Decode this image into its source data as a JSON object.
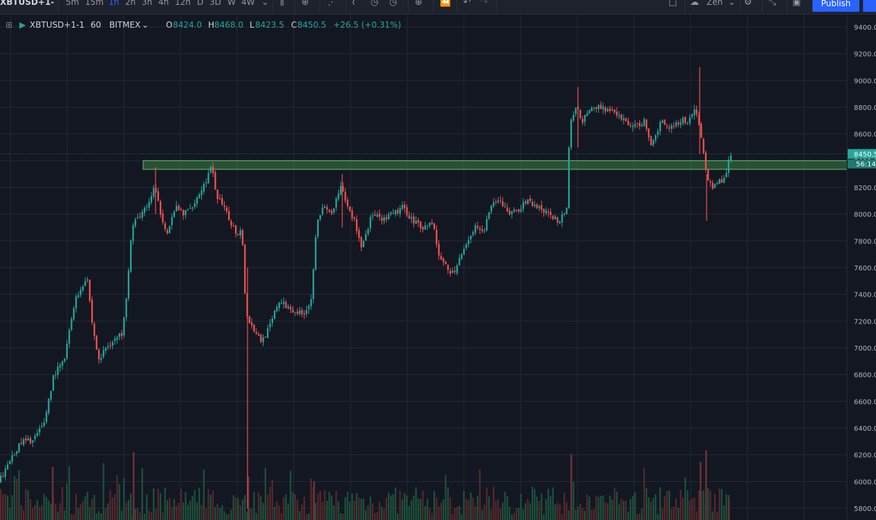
{
  "toolbar": {
    "symbol": "XBTUSD+1-",
    "timeframes": [
      "5m",
      "15m",
      "1h",
      "2h",
      "3h",
      "4h",
      "12h",
      "D",
      "3D",
      "W",
      "4W"
    ],
    "active_timeframe": "1h",
    "layout_name": "Zen",
    "publish_label": "Publish"
  },
  "legend": {
    "symbol": "XBTUSD+1-1",
    "interval": "60",
    "exchange": "BITMEX",
    "open_label": "O",
    "open": "8424.0",
    "high_label": "H",
    "high": "8468.0",
    "low_label": "L",
    "low": "8423.5",
    "close_label": "C",
    "close": "8450.5",
    "change": "+26.5 (+0.31%)"
  },
  "price_axis": {
    "current_price": "8450.5",
    "countdown": "56:14"
  },
  "colors": {
    "background": "#131722",
    "up": "#26a69a",
    "down": "#ef5350",
    "zone_fill": "#4caf50",
    "grid": "#242832"
  },
  "chart_data": {
    "type": "candlestick",
    "ylim": [
      5750,
      9500
    ],
    "yticks": [
      5800,
      6000,
      6200,
      6400,
      6600,
      6800,
      7000,
      7200,
      7400,
      7600,
      7800,
      8000,
      8200,
      8400,
      8600,
      8800,
      9000,
      9200,
      9400
    ],
    "ytick_labels": [
      "5800.0",
      "6000.0",
      "6200.0",
      "6400.0",
      "6600.0",
      "6800.0",
      "7000.0",
      "7200.0",
      "7400.0",
      "7600.0",
      "7800.0",
      "8000.0",
      "8200.0",
      "8400.0",
      "8600.0",
      "8800.0",
      "9000.0",
      "9200.0",
      "9400.0"
    ],
    "last_price": 8450.5,
    "horizontal_zone": {
      "low": 8335,
      "high": 8400
    },
    "price_path": [
      [
        0,
        6000
      ],
      [
        10,
        6080
      ],
      [
        20,
        6200
      ],
      [
        35,
        6300
      ],
      [
        50,
        6310
      ],
      [
        65,
        6420
      ],
      [
        80,
        6800
      ],
      [
        95,
        6900
      ],
      [
        110,
        7350
      ],
      [
        120,
        7450
      ],
      [
        128,
        7550
      ],
      [
        135,
        7200
      ],
      [
        145,
        6900
      ],
      [
        155,
        7000
      ],
      [
        165,
        7050
      ],
      [
        178,
        7100
      ],
      [
        185,
        7400
      ],
      [
        193,
        7900
      ],
      [
        205,
        8000
      ],
      [
        215,
        8050
      ],
      [
        225,
        8200
      ],
      [
        235,
        8000
      ],
      [
        245,
        7850
      ],
      [
        255,
        8050
      ],
      [
        268,
        8000
      ],
      [
        278,
        8050
      ],
      [
        290,
        8150
      ],
      [
        300,
        8250
      ],
      [
        308,
        8350
      ],
      [
        315,
        8150
      ],
      [
        325,
        8050
      ],
      [
        335,
        7950
      ],
      [
        345,
        7850
      ],
      [
        352,
        7900
      ],
      [
        358,
        7250
      ],
      [
        368,
        7150
      ],
      [
        380,
        7050
      ],
      [
        392,
        7150
      ],
      [
        405,
        7350
      ],
      [
        420,
        7300
      ],
      [
        440,
        7250
      ],
      [
        452,
        7350
      ],
      [
        460,
        7950
      ],
      [
        470,
        8050
      ],
      [
        482,
        8000
      ],
      [
        495,
        8200
      ],
      [
        505,
        8050
      ],
      [
        515,
        7950
      ],
      [
        525,
        7750
      ],
      [
        540,
        8000
      ],
      [
        555,
        7950
      ],
      [
        570,
        8000
      ],
      [
        585,
        8050
      ],
      [
        600,
        7950
      ],
      [
        615,
        7900
      ],
      [
        628,
        7950
      ],
      [
        636,
        7700
      ],
      [
        648,
        7600
      ],
      [
        660,
        7550
      ],
      [
        668,
        7700
      ],
      [
        678,
        7800
      ],
      [
        690,
        7900
      ],
      [
        700,
        7850
      ],
      [
        712,
        8050
      ],
      [
        725,
        8100
      ],
      [
        740,
        8000
      ],
      [
        755,
        8050
      ],
      [
        765,
        8100
      ],
      [
        780,
        8050
      ],
      [
        795,
        8000
      ],
      [
        810,
        7950
      ],
      [
        822,
        8050
      ],
      [
        826,
        8650
      ],
      [
        835,
        8800
      ],
      [
        845,
        8700
      ],
      [
        860,
        8800
      ],
      [
        875,
        8800
      ],
      [
        890,
        8750
      ],
      [
        905,
        8700
      ],
      [
        920,
        8650
      ],
      [
        935,
        8700
      ],
      [
        945,
        8500
      ],
      [
        958,
        8700
      ],
      [
        970,
        8650
      ],
      [
        985,
        8700
      ],
      [
        998,
        8700
      ],
      [
        1008,
        8800
      ],
      [
        1012,
        8700
      ],
      [
        1020,
        8450
      ],
      [
        1025,
        8250
      ],
      [
        1035,
        8200
      ],
      [
        1045,
        8250
      ],
      [
        1052,
        8300
      ],
      [
        1058,
        8450
      ]
    ],
    "spikes": [
      {
        "x": 1012,
        "low": 8450,
        "high": 9100
      },
      {
        "x": 1022,
        "low": 7950,
        "high": 8300
      },
      {
        "x": 358,
        "low": 5800,
        "high": 7600
      },
      {
        "x": 225,
        "low": 8000,
        "high": 8350
      },
      {
        "x": 495,
        "low": 7900,
        "high": 8300
      },
      {
        "x": 836,
        "low": 8500,
        "high": 8950
      }
    ],
    "volume_spikes": [
      {
        "x": 75,
        "level": 0.55
      },
      {
        "x": 192,
        "level": 0.7
      },
      {
        "x": 358,
        "level": 0.45
      },
      {
        "x": 453,
        "level": 0.4
      },
      {
        "x": 825,
        "level": 0.68
      },
      {
        "x": 1012,
        "level": 0.6
      },
      {
        "x": 1020,
        "level": 0.72
      },
      {
        "x": 1053,
        "level": 0.22
      }
    ]
  }
}
